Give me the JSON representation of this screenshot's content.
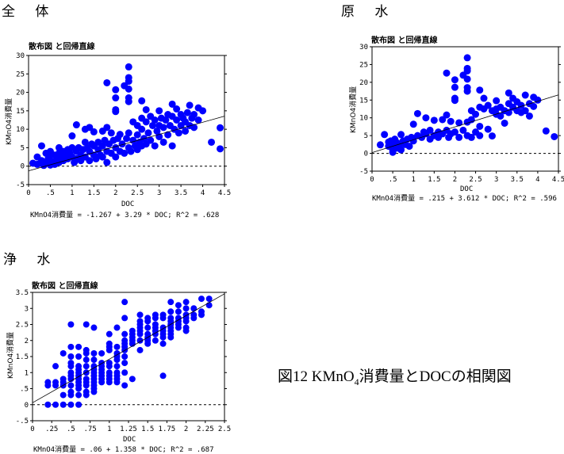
{
  "sections": [
    "全 体",
    "原 水",
    "浄 水"
  ],
  "caption": {
    "prefix": "図12  KMnO",
    "sub": "4",
    "suffix": "消費量とDOCの相関図"
  },
  "colors": {
    "points": "#0000ff",
    "line": "#000000"
  },
  "chart_data": [
    {
      "type": "scatter",
      "title": "散布図 と回帰直線",
      "xlabel": "DOC",
      "ylabel": "KMnO4消費量",
      "xlim": [
        0,
        4.5
      ],
      "ylim": [
        -5,
        30
      ],
      "xticks": [
        "0",
        ".5",
        "1",
        "1.5",
        "2",
        "2.5",
        "3",
        "3.5",
        "4",
        "4.5"
      ],
      "xtick_values": [
        0,
        0.5,
        1,
        1.5,
        2,
        2.5,
        3,
        3.5,
        4,
        4.5
      ],
      "yticks": [
        "-5",
        "0",
        "5",
        "10",
        "15",
        "20",
        "25",
        "30"
      ],
      "ytick_values": [
        -5,
        0,
        5,
        10,
        15,
        20,
        25,
        30
      ],
      "regression": {
        "intercept": -1.267,
        "slope": 3.29,
        "r2": 0.628
      },
      "equation": "KMnO4消費量 = -1.267 + 3.29 * DOC; R^2 = .628",
      "points": [
        [
          0.1,
          0.8
        ],
        [
          0.2,
          2.5
        ],
        [
          0.2,
          0.5
        ],
        [
          0.3,
          5.5
        ],
        [
          0.3,
          1.5
        ],
        [
          0.35,
          0.2
        ],
        [
          0.4,
          3.5
        ],
        [
          0.4,
          1.0
        ],
        [
          0.45,
          2.0
        ],
        [
          0.5,
          0.3
        ],
        [
          0.5,
          2.8
        ],
        [
          0.5,
          4.0
        ],
        [
          0.55,
          1.2
        ],
        [
          0.6,
          3.0
        ],
        [
          0.6,
          0.5
        ],
        [
          0.65,
          2.0
        ],
        [
          0.7,
          5.0
        ],
        [
          0.7,
          3.5
        ],
        [
          0.7,
          1.0
        ],
        [
          0.75,
          2.5
        ],
        [
          0.8,
          4.0
        ],
        [
          0.8,
          1.5
        ],
        [
          0.85,
          3.0
        ],
        [
          0.9,
          4.5
        ],
        [
          0.9,
          2.0
        ],
        [
          0.95,
          3.5
        ],
        [
          1.0,
          8.2
        ],
        [
          1.0,
          5.0
        ],
        [
          1.0,
          2.5
        ],
        [
          1.05,
          1.0
        ],
        [
          1.1,
          11.2
        ],
        [
          1.1,
          4.0
        ],
        [
          1.1,
          2.0
        ],
        [
          1.15,
          5.0
        ],
        [
          1.2,
          3.0
        ],
        [
          1.2,
          1.5
        ],
        [
          1.25,
          4.5
        ],
        [
          1.3,
          10.0
        ],
        [
          1.3,
          6.5
        ],
        [
          1.3,
          2.5
        ],
        [
          1.35,
          5.0
        ],
        [
          1.4,
          10.5
        ],
        [
          1.4,
          4.0
        ],
        [
          1.4,
          1.5
        ],
        [
          1.45,
          6.0
        ],
        [
          1.5,
          9.3
        ],
        [
          1.5,
          3.0
        ],
        [
          1.5,
          5.5
        ],
        [
          1.55,
          2.0
        ],
        [
          1.6,
          4.5
        ],
        [
          1.6,
          6.5
        ],
        [
          1.65,
          3.0
        ],
        [
          1.7,
          9.5
        ],
        [
          1.7,
          5.5
        ],
        [
          1.7,
          2.5
        ],
        [
          1.75,
          7.0
        ],
        [
          1.8,
          22.6
        ],
        [
          1.8,
          10.5
        ],
        [
          1.8,
          4.0
        ],
        [
          1.8,
          1.0
        ],
        [
          1.85,
          6.0
        ],
        [
          1.9,
          9.0
        ],
        [
          1.9,
          3.5
        ],
        [
          1.95,
          7.0
        ],
        [
          2.0,
          20.7
        ],
        [
          2.0,
          18.5
        ],
        [
          2.0,
          15.3
        ],
        [
          2.0,
          14.8
        ],
        [
          2.0,
          5.0
        ],
        [
          2.0,
          2.5
        ],
        [
          2.05,
          7.5
        ],
        [
          2.1,
          8.6
        ],
        [
          2.1,
          4.0
        ],
        [
          2.15,
          6.0
        ],
        [
          2.2,
          21.8
        ],
        [
          2.2,
          3.5
        ],
        [
          2.25,
          7.5
        ],
        [
          2.3,
          26.9
        ],
        [
          2.3,
          24.0
        ],
        [
          2.3,
          23.0
        ],
        [
          2.3,
          20.9
        ],
        [
          2.3,
          18.5
        ],
        [
          2.3,
          17.5
        ],
        [
          2.3,
          9.0
        ],
        [
          2.3,
          5.0
        ],
        [
          2.35,
          4.0
        ],
        [
          2.4,
          12.0
        ],
        [
          2.4,
          7.0
        ],
        [
          2.45,
          5.5
        ],
        [
          2.5,
          11.0
        ],
        [
          2.5,
          8.5
        ],
        [
          2.5,
          4.5
        ],
        [
          2.55,
          6.5
        ],
        [
          2.6,
          17.7
        ],
        [
          2.6,
          13.0
        ],
        [
          2.6,
          10.0
        ],
        [
          2.6,
          5.5
        ],
        [
          2.65,
          7.5
        ],
        [
          2.7,
          15.3
        ],
        [
          2.7,
          12.0
        ],
        [
          2.7,
          6.0
        ],
        [
          2.75,
          9.0
        ],
        [
          2.8,
          13.5
        ],
        [
          2.8,
          7.0
        ],
        [
          2.85,
          11.0
        ],
        [
          2.9,
          12.5
        ],
        [
          2.9,
          5.5
        ],
        [
          2.95,
          9.5
        ],
        [
          3.0,
          15.0
        ],
        [
          3.0,
          11.0
        ],
        [
          3.0,
          8.0
        ],
        [
          3.05,
          13.0
        ],
        [
          3.1,
          10.5
        ],
        [
          3.1,
          6.5
        ],
        [
          3.15,
          12.5
        ],
        [
          3.2,
          8.5
        ],
        [
          3.2,
          14.0
        ],
        [
          3.25,
          11.0
        ],
        [
          3.3,
          16.8
        ],
        [
          3.3,
          13.5
        ],
        [
          3.3,
          5.5
        ],
        [
          3.35,
          10.0
        ],
        [
          3.4,
          15.5
        ],
        [
          3.4,
          12.5
        ],
        [
          3.45,
          9.0
        ],
        [
          3.5,
          14.0
        ],
        [
          3.5,
          11.0
        ],
        [
          3.55,
          13.0
        ],
        [
          3.6,
          12.0
        ],
        [
          3.6,
          9.5
        ],
        [
          3.65,
          14.5
        ],
        [
          3.7,
          16.5
        ],
        [
          3.7,
          11.0
        ],
        [
          3.75,
          13.0
        ],
        [
          3.8,
          14.0
        ],
        [
          3.8,
          10.5
        ],
        [
          3.9,
          15.8
        ],
        [
          3.9,
          12.5
        ],
        [
          4.0,
          15.0
        ],
        [
          4.2,
          6.5
        ],
        [
          4.4,
          10.4
        ],
        [
          4.4,
          4.7
        ]
      ]
    },
    {
      "type": "scatter",
      "title": "散布図 と回帰直線",
      "xlabel": "DOC",
      "ylabel": "KMnO4消費量",
      "xlim": [
        0,
        4.5
      ],
      "ylim": [
        -5,
        30
      ],
      "xticks": [
        "0",
        ".5",
        "1",
        "1.5",
        "2",
        "2.5",
        "3",
        "3.5",
        "4",
        "4.5"
      ],
      "xtick_values": [
        0,
        0.5,
        1,
        1.5,
        2,
        2.5,
        3,
        3.5,
        4,
        4.5
      ],
      "yticks": [
        "-5",
        "0",
        "5",
        "10",
        "15",
        "20",
        "25",
        "30"
      ],
      "ytick_values": [
        -5,
        0,
        5,
        10,
        15,
        20,
        25,
        30
      ],
      "regression": {
        "intercept": 0.215,
        "slope": 3.612,
        "r2": 0.596
      },
      "equation": "KMnO4消費量 = .215 + 3.612 * DOC; R^2 = .596",
      "points": [
        [
          0.2,
          2.4
        ],
        [
          0.3,
          5.3
        ],
        [
          0.4,
          3.2
        ],
        [
          0.4,
          2.0
        ],
        [
          0.45,
          3.5
        ],
        [
          0.5,
          1.0
        ],
        [
          0.5,
          0.3
        ],
        [
          0.5,
          2.5
        ],
        [
          0.55,
          4.0
        ],
        [
          0.6,
          3.0
        ],
        [
          0.6,
          1.5
        ],
        [
          0.65,
          2.2
        ],
        [
          0.7,
          5.3
        ],
        [
          0.7,
          1.0
        ],
        [
          0.75,
          3.5
        ],
        [
          0.8,
          2.5
        ],
        [
          0.85,
          4.0
        ],
        [
          0.9,
          2.0
        ],
        [
          0.95,
          4.5
        ],
        [
          1.0,
          8.2
        ],
        [
          1.0,
          3.5
        ],
        [
          1.1,
          11.2
        ],
        [
          1.1,
          5.0
        ],
        [
          1.2,
          4.5
        ],
        [
          1.25,
          6.0
        ],
        [
          1.3,
          10.0
        ],
        [
          1.3,
          5.5
        ],
        [
          1.4,
          4.0
        ],
        [
          1.4,
          6.5
        ],
        [
          1.5,
          9.3
        ],
        [
          1.5,
          5.0
        ],
        [
          1.6,
          6.0
        ],
        [
          1.6,
          4.5
        ],
        [
          1.7,
          9.5
        ],
        [
          1.7,
          5.5
        ],
        [
          1.8,
          22.6
        ],
        [
          1.8,
          10.8
        ],
        [
          1.8,
          6.5
        ],
        [
          1.85,
          4.5
        ],
        [
          1.9,
          9.0
        ],
        [
          1.9,
          5.5
        ],
        [
          2.0,
          20.7
        ],
        [
          2.0,
          18.6
        ],
        [
          2.0,
          15.5
        ],
        [
          2.0,
          14.9
        ],
        [
          2.0,
          6.0
        ],
        [
          2.1,
          8.6
        ],
        [
          2.1,
          4.5
        ],
        [
          2.2,
          22.0
        ],
        [
          2.2,
          6.5
        ],
        [
          2.3,
          26.9
        ],
        [
          2.3,
          23.9
        ],
        [
          2.3,
          23.2
        ],
        [
          2.3,
          20.9
        ],
        [
          2.3,
          18.5
        ],
        [
          2.3,
          17.5
        ],
        [
          2.3,
          8.8
        ],
        [
          2.3,
          5.0
        ],
        [
          2.4,
          12.0
        ],
        [
          2.4,
          9.5
        ],
        [
          2.4,
          4.5
        ],
        [
          2.5,
          11.0
        ],
        [
          2.5,
          6.0
        ],
        [
          2.6,
          17.8
        ],
        [
          2.6,
          13.0
        ],
        [
          2.6,
          7.6
        ],
        [
          2.6,
          5.0
        ],
        [
          2.7,
          15.5
        ],
        [
          2.7,
          12.5
        ],
        [
          2.8,
          13.5
        ],
        [
          2.8,
          6.8
        ],
        [
          2.9,
          12.0
        ],
        [
          2.9,
          4.9
        ],
        [
          3.0,
          14.8
        ],
        [
          3.0,
          11.0
        ],
        [
          3.0,
          12.5
        ],
        [
          3.1,
          10.5
        ],
        [
          3.1,
          13.0
        ],
        [
          3.2,
          8.5
        ],
        [
          3.2,
          12.0
        ],
        [
          3.3,
          17.0
        ],
        [
          3.3,
          14.0
        ],
        [
          3.3,
          11.5
        ],
        [
          3.4,
          15.5
        ],
        [
          3.4,
          13.0
        ],
        [
          3.5,
          12.0
        ],
        [
          3.5,
          14.5
        ],
        [
          3.6,
          11.5
        ],
        [
          3.6,
          13.5
        ],
        [
          3.7,
          16.4
        ],
        [
          3.7,
          12.0
        ],
        [
          3.8,
          14.0
        ],
        [
          3.8,
          10.5
        ],
        [
          3.9,
          15.8
        ],
        [
          3.9,
          13.2
        ],
        [
          4.0,
          15.0
        ],
        [
          4.2,
          6.3
        ],
        [
          4.4,
          4.7
        ]
      ]
    },
    {
      "type": "scatter",
      "title": "散布図 と回帰直線",
      "xlabel": "DOC",
      "ylabel": "KMnO4消費量",
      "xlim": [
        0,
        2.5
      ],
      "ylim": [
        -0.5,
        3.5
      ],
      "xticks": [
        "0",
        ".25",
        ".5",
        ".75",
        "1",
        "1.25",
        "1.5",
        "1.75",
        "2",
        "2.25",
        "2.5"
      ],
      "xtick_values": [
        0,
        0.25,
        0.5,
        0.75,
        1,
        1.25,
        1.5,
        1.75,
        2,
        2.25,
        2.5
      ],
      "yticks": [
        "-.5",
        "0",
        ".5",
        "1",
        "1.5",
        "2",
        "2.5",
        "3",
        "3.5"
      ],
      "ytick_values": [
        -0.5,
        0,
        0.5,
        1,
        1.5,
        2,
        2.5,
        3,
        3.5
      ],
      "regression": {
        "intercept": 0.06,
        "slope": 1.358,
        "r2": 0.687
      },
      "equation": "KMnO4消費量 = .06 + 1.358 * DOC; R^2 = .687",
      "columns": [
        [
          0.2,
          [
            0,
            0.6,
            0.7
          ]
        ],
        [
          0.3,
          [
            0,
            0.6,
            0.7,
            1.2
          ]
        ],
        [
          0.4,
          [
            0,
            0.3,
            0.6,
            0.7,
            0.8,
            1.6
          ]
        ],
        [
          0.5,
          [
            0,
            0.3,
            0.4,
            0.6,
            0.8,
            0.9,
            1.0,
            1.2,
            1.3,
            1.5,
            1.8,
            2.5
          ]
        ],
        [
          0.6,
          [
            0,
            0.3,
            0.5,
            0.6,
            0.7,
            0.8,
            0.9,
            1.0,
            1.1,
            1.2,
            1.5,
            1.8
          ]
        ],
        [
          0.7,
          [
            0.3,
            0.4,
            0.6,
            0.7,
            0.8,
            1.0,
            1.2,
            1.4,
            1.6,
            1.7,
            2.5
          ]
        ],
        [
          0.8,
          [
            0.4,
            0.5,
            0.6,
            0.7,
            0.8,
            0.9,
            1.0,
            1.1,
            1.2,
            1.4,
            1.6,
            2.4
          ]
        ],
        [
          0.9,
          [
            0.7,
            0.8,
            0.9,
            1.0,
            1.1,
            1.2,
            1.3,
            1.6
          ]
        ],
        [
          1.0,
          [
            0.7,
            0.8,
            0.9,
            1.0,
            1.2,
            1.3,
            1.7,
            1.8,
            1.9,
            2.2
          ]
        ],
        [
          1.1,
          [
            0.7,
            0.8,
            0.9,
            1.0,
            1.2,
            1.4,
            1.5,
            1.6,
            1.8,
            2.4
          ]
        ],
        [
          1.2,
          [
            0.6,
            1.0,
            1.3,
            1.5,
            1.7,
            1.8,
            1.9,
            2.0,
            2.2,
            2.7,
            3.2
          ]
        ],
        [
          1.3,
          [
            0.8,
            1.9,
            2.0,
            2.1,
            2.2,
            2.3
          ]
        ],
        [
          1.4,
          [
            1.7,
            2.0,
            2.2,
            2.3,
            2.4,
            2.5,
            2.6,
            2.8
          ]
        ],
        [
          1.5,
          [
            1.9,
            2.0,
            2.1,
            2.2,
            2.4,
            2.6,
            2.7
          ]
        ],
        [
          1.6,
          [
            2.0,
            2.2,
            2.3,
            2.4,
            2.5,
            2.7,
            2.8
          ]
        ],
        [
          1.7,
          [
            0.9,
            1.9,
            2.1,
            2.2,
            2.3,
            2.4,
            2.7,
            2.8
          ]
        ],
        [
          1.8,
          [
            2.1,
            2.2,
            2.3,
            2.4,
            2.5,
            2.6,
            2.7,
            2.9,
            3.2
          ]
        ],
        [
          1.9,
          [
            2.4,
            2.5,
            2.6,
            2.7,
            2.9,
            3.1
          ]
        ],
        [
          2.0,
          [
            2.3,
            2.4,
            2.6,
            2.7,
            2.8,
            3.0,
            3.2
          ]
        ],
        [
          2.1,
          [
            2.7,
            2.8,
            3.0
          ]
        ],
        [
          2.2,
          [
            2.8,
            2.9,
            3.3
          ]
        ],
        [
          2.3,
          [
            3.1,
            3.3
          ]
        ]
      ]
    }
  ]
}
